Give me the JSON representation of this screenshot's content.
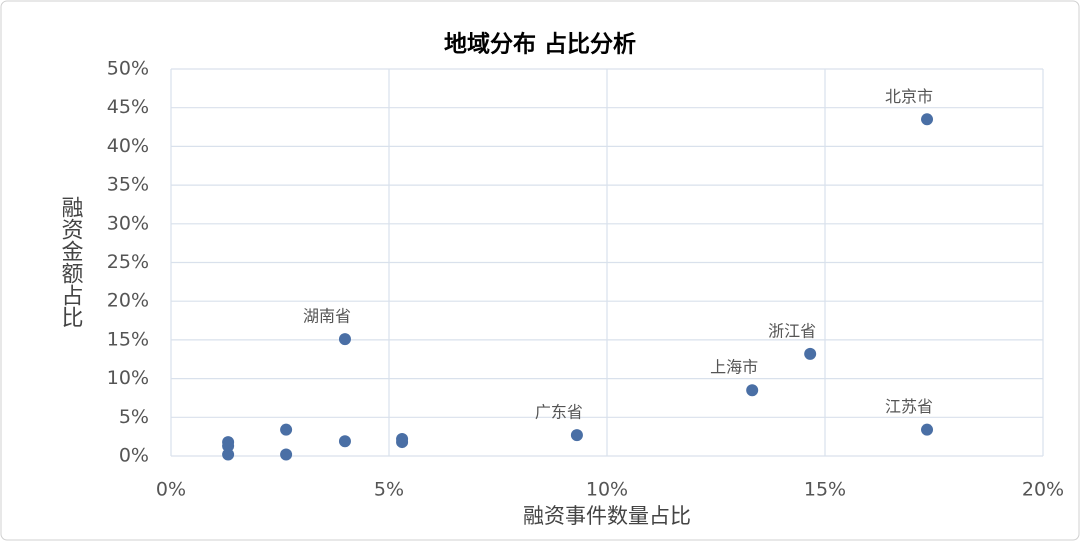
{
  "chart_data": {
    "type": "scatter",
    "title": "地域分布 占比分析",
    "x_label": "融资事件数量占比",
    "y_label": "融资金额占比",
    "color": "#4a6fa5",
    "grid": true,
    "xlim": [
      0,
      20
    ],
    "ylim": [
      0,
      50
    ],
    "xticks": [
      {
        "value": 0,
        "label": "0%"
      },
      {
        "value": 5,
        "label": "5%"
      },
      {
        "value": 10,
        "label": "10%"
      },
      {
        "value": 15,
        "label": "15%"
      },
      {
        "value": 20,
        "label": "20%"
      }
    ],
    "yticks": [
      {
        "value": 0,
        "label": "0%"
      },
      {
        "value": 5,
        "label": "5%"
      },
      {
        "value": 10,
        "label": "10%"
      },
      {
        "value": 15,
        "label": "15%"
      },
      {
        "value": 20,
        "label": "20%"
      },
      {
        "value": 25,
        "label": "25%"
      },
      {
        "value": 30,
        "label": "30%"
      },
      {
        "value": 35,
        "label": "35%"
      },
      {
        "value": 40,
        "label": "40%"
      },
      {
        "value": 45,
        "label": "45%"
      },
      {
        "value": 50,
        "label": "50%"
      }
    ],
    "x": [
      1.31,
      1.31,
      1.31,
      2.64,
      2.64,
      3.99,
      3.99,
      5.3,
      5.3,
      9.31,
      13.33,
      14.66,
      17.34,
      17.34
    ],
    "values": [
      1.8,
      1.3,
      0.2,
      3.4,
      0.2,
      15.1,
      1.9,
      2.2,
      1.8,
      2.7,
      8.5,
      13.2,
      43.5,
      3.4
    ],
    "point_labels": [
      null,
      null,
      null,
      null,
      null,
      "湖南省",
      null,
      null,
      null,
      "广东省",
      "上海市",
      "浙江省",
      "北京市",
      "江苏省"
    ]
  }
}
